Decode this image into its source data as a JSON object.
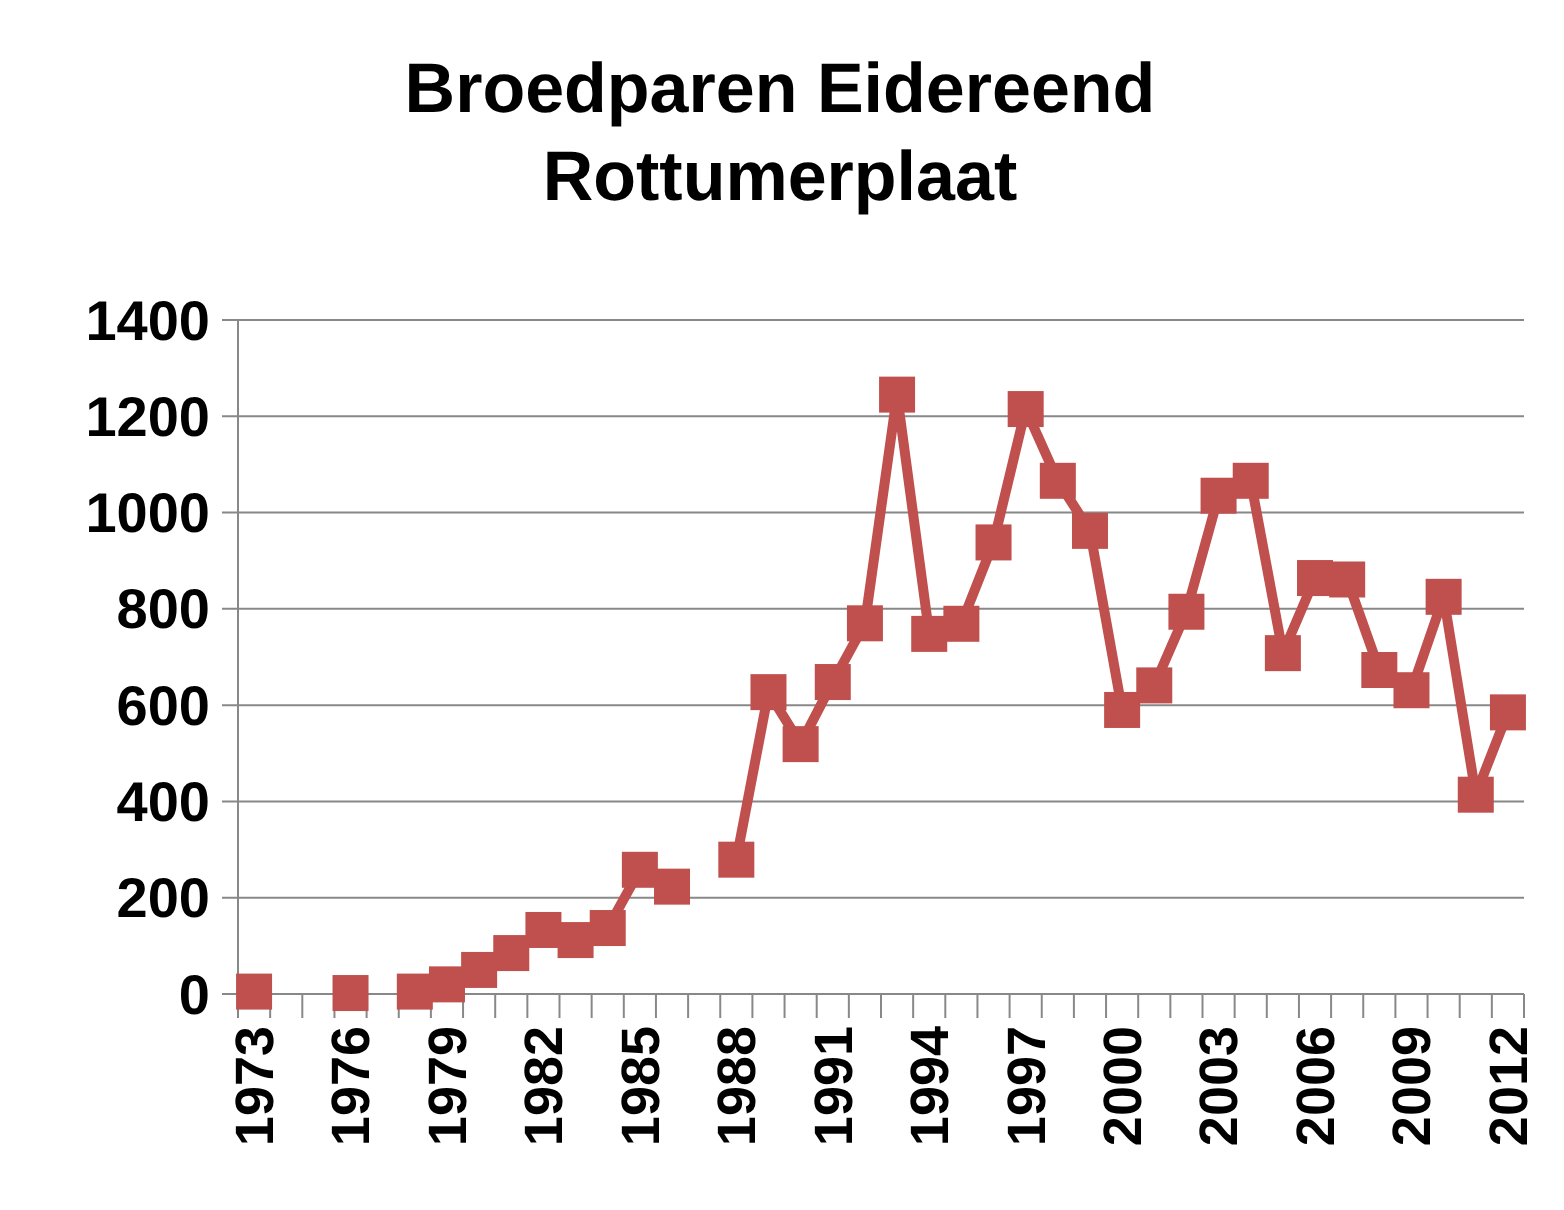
{
  "chart_data": {
    "type": "line",
    "title": "Broedparen Eidereend\nRottumerplaat",
    "categories": [
      "1973",
      null,
      null,
      "1976",
      null,
      null,
      "1979",
      null,
      null,
      "1982",
      null,
      null,
      "1985",
      null,
      null,
      "1988",
      null,
      null,
      "1991",
      null,
      null,
      "1994",
      null,
      null,
      "1997",
      null,
      null,
      "2000",
      null,
      null,
      "2003",
      null,
      null,
      "2006",
      null,
      null,
      "2009",
      null,
      null,
      "2012"
    ],
    "series": [
      {
        "color": "#c0504d",
        "values": [
          5,
          null,
          null,
          2,
          null,
          5,
          20,
          50,
          85,
          133,
          112,
          137,
          258,
          223,
          null,
          279,
          627,
          519,
          648,
          770,
          1245,
          748,
          769,
          938,
          1215,
          1066,
          962,
          590,
          641,
          794,
          1035,
          1066,
          708,
          864,
          861,
          673,
          631,
          825,
          414,
          585
        ]
      }
    ],
    "ylim": [
      0,
      1400
    ],
    "yticks": [
      0,
      200,
      400,
      600,
      800,
      1000,
      1200,
      1400
    ],
    "grid": "y",
    "marker": "square",
    "line_style": "solid"
  }
}
